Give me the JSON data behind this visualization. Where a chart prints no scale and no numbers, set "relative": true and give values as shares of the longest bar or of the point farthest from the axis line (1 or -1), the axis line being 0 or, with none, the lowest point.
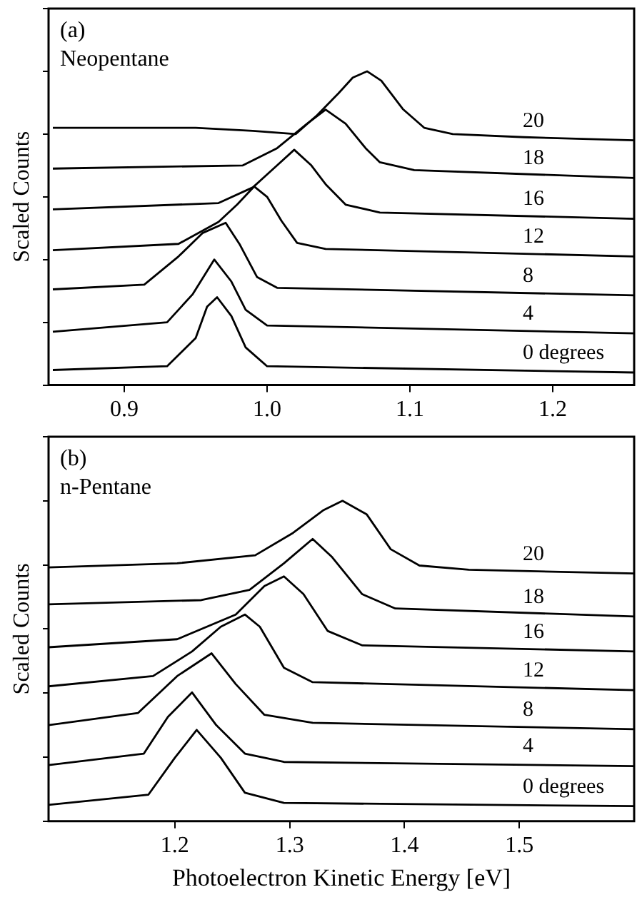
{
  "chart_data": [
    {
      "type": "line",
      "title": "(a)",
      "subtitle": "Neopentane",
      "ylabel": "Scaled Counts",
      "relative": true,
      "xlim": [
        0.847,
        1.257
      ],
      "xticks": [
        0.9,
        {
          "value": 1.0,
          "label": "1.0"
        },
        1.1,
        1.2
      ],
      "tick_labels": "x",
      "legend": false,
      "marker": "none",
      "line_style": "solid",
      "series": [
        {
          "name": "20",
          "color": "#000000",
          "x": [
            0.85,
            0.95,
            0.99,
            1.02,
            1.035,
            1.05,
            1.06,
            1.07,
            1.08,
            1.095,
            1.11,
            1.13,
            1.18,
            1.257
          ],
          "values": [
            0.82,
            0.82,
            0.81,
            0.8,
            0.86,
            0.93,
            0.98,
            1.0,
            0.97,
            0.88,
            0.82,
            0.8,
            0.79,
            0.78
          ]
        },
        {
          "name": "18",
          "color": "#000000",
          "x": [
            0.85,
            0.983,
            1.007,
            1.028,
            1.041,
            1.055,
            1.069,
            1.079,
            1.103,
            1.257
          ],
          "values": [
            0.69,
            0.7,
            0.755,
            0.833,
            0.878,
            0.833,
            0.755,
            0.71,
            0.685,
            0.66
          ]
        },
        {
          "name": "16",
          "color": "#000000",
          "x": [
            0.85,
            0.966,
            0.99,
            1.007,
            1.019,
            1.031,
            1.041,
            1.055,
            1.079,
            1.257
          ],
          "values": [
            0.56,
            0.58,
            0.63,
            0.7,
            0.75,
            0.7,
            0.64,
            0.575,
            0.55,
            0.53
          ]
        },
        {
          "name": "12",
          "color": "#000000",
          "x": [
            0.85,
            0.938,
            0.966,
            0.979,
            0.991,
            1.0,
            1.01,
            1.021,
            1.041,
            1.257
          ],
          "values": [
            0.43,
            0.45,
            0.52,
            0.575,
            0.633,
            0.6,
            0.524,
            0.453,
            0.434,
            0.41
          ]
        },
        {
          "name": "8",
          "color": "#000000",
          "x": [
            0.85,
            0.914,
            0.938,
            0.955,
            0.971,
            0.981,
            0.993,
            1.007,
            1.257
          ],
          "values": [
            0.305,
            0.32,
            0.41,
            0.485,
            0.517,
            0.447,
            0.344,
            0.31,
            0.286
          ]
        },
        {
          "name": "4",
          "color": "#000000",
          "x": [
            0.85,
            0.93,
            0.948,
            0.963,
            0.975,
            0.985,
            1.0,
            1.257
          ],
          "values": [
            0.17,
            0.2,
            0.29,
            0.4,
            0.33,
            0.24,
            0.19,
            0.165
          ]
        },
        {
          "name": "0 degrees",
          "color": "#000000",
          "x": [
            0.85,
            0.93,
            0.95,
            0.958,
            0.965,
            0.975,
            0.985,
            1.0,
            1.257
          ],
          "values": [
            0.048,
            0.06,
            0.15,
            0.25,
            0.28,
            0.22,
            0.12,
            0.06,
            0.04
          ]
        }
      ]
    },
    {
      "type": "line",
      "title": "(b)",
      "subtitle": "n-Pentane",
      "xlabel": "Photoelectron Kinetic Energy [eV]",
      "ylabel": "Scaled Counts",
      "relative": true,
      "xlim": [
        1.09,
        1.6
      ],
      "xticks": [
        1.2,
        1.3,
        1.4,
        1.5
      ],
      "tick_labels": "x",
      "legend": false,
      "marker": "none",
      "line_style": "solid",
      "series": [
        {
          "name": "20",
          "color": "#000000",
          "x": [
            1.09,
            1.202,
            1.27,
            1.303,
            1.329,
            1.346,
            1.367,
            1.388,
            1.413,
            1.456,
            1.6
          ],
          "values": [
            0.792,
            0.805,
            0.83,
            0.9,
            0.97,
            1.0,
            0.958,
            0.849,
            0.798,
            0.785,
            0.773
          ]
        },
        {
          "name": "18",
          "color": "#000000",
          "x": [
            1.09,
            1.223,
            1.265,
            1.295,
            1.32,
            1.337,
            1.363,
            1.392,
            1.6
          ],
          "values": [
            0.677,
            0.69,
            0.722,
            0.805,
            0.881,
            0.824,
            0.709,
            0.664,
            0.639
          ]
        },
        {
          "name": "16",
          "color": "#000000",
          "x": [
            1.09,
            1.202,
            1.253,
            1.278,
            1.295,
            1.312,
            1.333,
            1.363,
            1.6
          ],
          "values": [
            0.543,
            0.568,
            0.645,
            0.734,
            0.764,
            0.709,
            0.594,
            0.549,
            0.53
          ]
        },
        {
          "name": "12",
          "color": "#000000",
          "x": [
            1.09,
            1.181,
            1.215,
            1.24,
            1.261,
            1.274,
            1.295,
            1.32,
            1.6
          ],
          "values": [
            0.421,
            0.453,
            0.53,
            0.607,
            0.645,
            0.607,
            0.479,
            0.434,
            0.409
          ]
        },
        {
          "name": "8",
          "color": "#000000",
          "x": [
            1.09,
            1.168,
            1.202,
            1.232,
            1.253,
            1.278,
            1.32,
            1.6
          ],
          "values": [
            0.3,
            0.338,
            0.453,
            0.524,
            0.428,
            0.332,
            0.307,
            0.287
          ]
        },
        {
          "name": "4",
          "color": "#000000",
          "x": [
            1.09,
            1.173,
            1.194,
            1.215,
            1.236,
            1.261,
            1.295,
            1.6
          ],
          "values": [
            0.175,
            0.211,
            0.326,
            0.402,
            0.3,
            0.211,
            0.185,
            0.172
          ]
        },
        {
          "name": "0 degrees",
          "color": "#000000",
          "x": [
            1.09,
            1.177,
            1.2,
            1.219,
            1.24,
            1.261,
            1.295,
            1.6
          ],
          "values": [
            0.051,
            0.083,
            0.198,
            0.285,
            0.198,
            0.089,
            0.057,
            0.047
          ]
        }
      ]
    }
  ]
}
